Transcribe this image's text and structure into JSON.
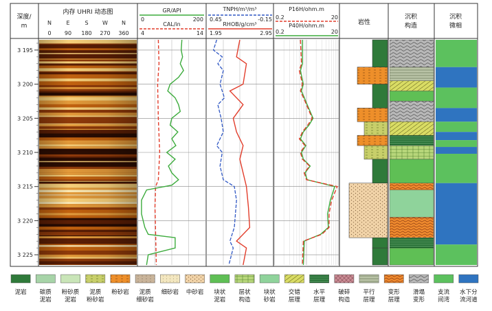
{
  "chart_data": {
    "type": "line",
    "tracks": {
      "depth": {
        "header": [
          "深度/",
          "m"
        ],
        "ticks": [
          "3 195",
          "3 200",
          "3 205",
          "3 210",
          "3 215",
          "3 220",
          "3 225"
        ],
        "ylim": [
          3193.5,
          3226.5
        ]
      },
      "image": {
        "title": "内存 UHRI 动态图",
        "directions": [
          "N",
          "E",
          "S",
          "W",
          "N"
        ],
        "angles": [
          "0",
          "90",
          "180",
          "270",
          "360"
        ]
      },
      "gr_cal": {
        "curves": [
          {
            "name": "GR/API",
            "range": [
              "0",
              "200"
            ],
            "color": "#3cab3c"
          },
          {
            "name": "CAL/in",
            "range": [
              "4",
              "14"
            ],
            "color": "#e23c2a"
          }
        ]
      },
      "porosity": {
        "curves": [
          {
            "name": "TNPH/m³/m³",
            "range": [
              "0.45",
              "-0.15"
            ],
            "color": "#2f57c4"
          },
          {
            "name": "RHOB/g/cm³",
            "range": [
              "1.95",
              "2.95"
            ],
            "color": "#e23c2a"
          }
        ]
      },
      "resistivity": {
        "curves": [
          {
            "name": "P16H/ohm.m",
            "range": [
              "0.2",
              "20"
            ],
            "color": "#e23c2a"
          },
          {
            "name": "P40H/ohm.m",
            "range": [
              "0.2",
              "20"
            ],
            "color": "#3cab3c"
          }
        ]
      },
      "lithology": {
        "title": "岩性"
      },
      "structure": {
        "title": [
          "沉积",
          "构造"
        ]
      },
      "facies": {
        "title": [
          "沉积",
          "微相"
        ]
      }
    },
    "gr_series": {
      "depth": [
        3193.5,
        3195,
        3196,
        3197,
        3198,
        3199,
        3200,
        3201,
        3202,
        3203,
        3204,
        3205,
        3206,
        3207,
        3208,
        3209,
        3210,
        3211,
        3212,
        3213,
        3214,
        3214.8,
        3215.5,
        3217,
        3219,
        3221,
        3222,
        3222.5,
        3224,
        3225,
        3226.5
      ],
      "value": [
        130,
        128,
        132,
        125,
        135,
        120,
        95,
        88,
        110,
        120,
        125,
        100,
        95,
        118,
        100,
        112,
        85,
        110,
        90,
        100,
        120,
        100,
        25,
        10,
        10,
        20,
        30,
        110,
        110,
        30,
        25
      ]
    },
    "cal_series": {
      "depth": [
        3193.5,
        3197,
        3200,
        3205,
        3210,
        3214,
        3215,
        3218,
        3222,
        3226.5
      ],
      "value": [
        7.0,
        7.1,
        6.9,
        7.0,
        7.2,
        7.0,
        6.6,
        6.5,
        6.6,
        6.7
      ]
    },
    "tnph_series": {
      "depth": [
        3193.5,
        3195,
        3196,
        3197,
        3198,
        3200,
        3202,
        3203,
        3205,
        3207,
        3209,
        3210,
        3212,
        3214,
        3215,
        3217,
        3219,
        3221,
        3223,
        3224,
        3226.5
      ],
      "value": [
        0.36,
        0.39,
        0.31,
        0.35,
        0.3,
        0.33,
        0.29,
        0.35,
        0.32,
        0.3,
        0.36,
        0.31,
        0.33,
        0.3,
        0.2,
        0.18,
        0.19,
        0.2,
        0.24,
        0.21,
        0.25
      ]
    },
    "rhob_series": {
      "depth": [
        3193.5,
        3196,
        3197,
        3200,
        3201,
        3203,
        3205,
        3207,
        3209,
        3211,
        3213,
        3215,
        3218,
        3221,
        3223,
        3224,
        3226.5
      ],
      "value": [
        2.45,
        2.4,
        2.55,
        2.5,
        2.3,
        2.5,
        2.35,
        2.4,
        2.5,
        2.45,
        2.5,
        2.55,
        2.58,
        2.6,
        2.4,
        2.55,
        2.5
      ]
    },
    "p16h_series": {
      "depth": [
        3193.5,
        3197,
        3198,
        3200,
        3201,
        3203,
        3205,
        3206,
        3207,
        3208,
        3209,
        3210,
        3211,
        3212,
        3213,
        3214,
        3215,
        3217,
        3219,
        3221,
        3222,
        3223,
        3226.5
      ],
      "value": [
        1.3,
        1.4,
        1.2,
        1.5,
        1.3,
        2.0,
        3.0,
        2.2,
        1.5,
        1.2,
        1.8,
        1.3,
        1.5,
        2.5,
        1.7,
        2.0,
        18.0,
        12.0,
        10.0,
        10.0,
        6.0,
        1.6,
        1.5
      ]
    },
    "p40h_series": {
      "depth": [
        3193.5,
        3197,
        3198,
        3200,
        3201,
        3203,
        3205,
        3206,
        3207,
        3208,
        3209,
        3210,
        3211,
        3212,
        3213,
        3214,
        3215,
        3217,
        3219,
        3221,
        3222,
        3223,
        3226.5
      ],
      "value": [
        1.5,
        1.5,
        1.3,
        1.6,
        1.4,
        2.1,
        3.2,
        2.4,
        1.6,
        1.3,
        1.9,
        1.4,
        1.6,
        2.6,
        1.8,
        2.1,
        15.0,
        11.0,
        9.0,
        9.5,
        5.5,
        1.7,
        1.6
      ]
    },
    "lithology_layers": [
      {
        "top": 3193.5,
        "bottom": 3197.5,
        "type": "泥岩"
      },
      {
        "top": 3197.5,
        "bottom": 3200.0,
        "type": "粉砂岩"
      },
      {
        "top": 3200.0,
        "bottom": 3203.5,
        "type": "泥岩"
      },
      {
        "top": 3203.5,
        "bottom": 3205.5,
        "type": "粉砂岩"
      },
      {
        "top": 3205.5,
        "bottom": 3207.5,
        "type": "泥质粉砂岩"
      },
      {
        "top": 3207.5,
        "bottom": 3209.0,
        "type": "粉砂岩"
      },
      {
        "top": 3209.0,
        "bottom": 3211.0,
        "type": "泥质粉砂岩"
      },
      {
        "top": 3211.0,
        "bottom": 3214.5,
        "type": "泥岩"
      },
      {
        "top": 3214.5,
        "bottom": 3222.5,
        "type": "中砂岩"
      },
      {
        "top": 3222.5,
        "bottom": 3224.0,
        "type": "泥岩"
      },
      {
        "top": 3224.0,
        "bottom": 3226.5,
        "type": "泥岩"
      }
    ],
    "structure_layers": [
      {
        "top": 3193.5,
        "bottom": 3197.5,
        "type": "滑塌变形"
      },
      {
        "top": 3197.5,
        "bottom": 3199.5,
        "type": "平行层理"
      },
      {
        "top": 3199.5,
        "bottom": 3201.0,
        "type": "交错层理"
      },
      {
        "top": 3201.0,
        "bottom": 3202.5,
        "type": "块状泥岩"
      },
      {
        "top": 3202.5,
        "bottom": 3205.5,
        "type": "滑塌变形"
      },
      {
        "top": 3205.5,
        "bottom": 3207.5,
        "type": "交错层理"
      },
      {
        "top": 3207.5,
        "bottom": 3209.0,
        "type": "水平层理"
      },
      {
        "top": 3209.0,
        "bottom": 3211.0,
        "type": "层状构造"
      },
      {
        "top": 3211.0,
        "bottom": 3214.5,
        "type": "块状泥岩"
      },
      {
        "top": 3214.5,
        "bottom": 3215.5,
        "type": "变形层理"
      },
      {
        "top": 3215.5,
        "bottom": 3219.5,
        "type": "块状砂岩"
      },
      {
        "top": 3219.5,
        "bottom": 3222.5,
        "type": "变形层理"
      },
      {
        "top": 3222.5,
        "bottom": 3224.0,
        "type": "水平层理"
      },
      {
        "top": 3224.0,
        "bottom": 3226.5,
        "type": "块状泥岩"
      }
    ],
    "facies_layers": [
      {
        "top": 3193.5,
        "bottom": 3197.5,
        "type": "支流间湾"
      },
      {
        "top": 3197.5,
        "bottom": 3200.5,
        "type": "水下分流河道"
      },
      {
        "top": 3200.5,
        "bottom": 3203.5,
        "type": "支流间湾"
      },
      {
        "top": 3203.5,
        "bottom": 3205.5,
        "type": "水下分流河道"
      },
      {
        "top": 3205.5,
        "bottom": 3207.0,
        "type": "支流间湾"
      },
      {
        "top": 3207.0,
        "bottom": 3208.2,
        "type": "水下分流河道"
      },
      {
        "top": 3208.2,
        "bottom": 3209.2,
        "type": "支流间湾"
      },
      {
        "top": 3209.2,
        "bottom": 3210.2,
        "type": "水下分流河道"
      },
      {
        "top": 3210.2,
        "bottom": 3214.5,
        "type": "支流间湾"
      },
      {
        "top": 3214.5,
        "bottom": 3223.5,
        "type": "水下分流河道"
      },
      {
        "top": 3223.5,
        "bottom": 3226.5,
        "type": "支流间湾"
      }
    ],
    "legend": [
      {
        "label": [
          "泥岩"
        ],
        "color": "#2f7a3a"
      },
      {
        "label": [
          "碳质",
          "泥岩"
        ],
        "color": "#a7d4a8"
      },
      {
        "label": [
          "粉砂质",
          "泥岩"
        ],
        "color": "#c9e5b8"
      },
      {
        "label": [
          "泥质",
          "粉砂岩"
        ],
        "color": "#c8cf6a"
      },
      {
        "label": [
          "粉砂岩"
        ],
        "color": "#ee8f2a"
      },
      {
        "label": [
          "泥质",
          "细砂岩"
        ],
        "color": "#c9b49a"
      },
      {
        "label": [
          "细砂岩"
        ],
        "color": "#f3e7c0"
      },
      {
        "label": [
          "中砂岩"
        ],
        "color": "#f1d3a8"
      },
      {
        "label": [
          "块状",
          "泥岩"
        ],
        "color": "#5fbf55"
      },
      {
        "label": [
          "层状",
          "构造"
        ],
        "color": "#b7d67a"
      },
      {
        "label": [
          "块状",
          "砂岩"
        ],
        "color": "#8fd39b"
      },
      {
        "label": [
          "交错",
          "层理"
        ],
        "color": "#d9dc64"
      },
      {
        "label": [
          "水平",
          "层理"
        ],
        "color": "#1e6a2e"
      },
      {
        "label": [
          "破碎",
          "构造"
        ],
        "color": "#c98a93"
      },
      {
        "label": [
          "平行",
          "层理"
        ],
        "color": "#b9c3a6"
      },
      {
        "label": [
          "变形",
          "层理"
        ],
        "color": "#ef8a2e"
      },
      {
        "label": [
          "滑塌",
          "变形"
        ],
        "color": "#b8b8b8"
      },
      {
        "label": [
          "支流",
          "间湾"
        ],
        "color": "#5cc15e"
      },
      {
        "label": [
          "水下分",
          "流河道"
        ],
        "color": "#2f74c0"
      }
    ]
  }
}
